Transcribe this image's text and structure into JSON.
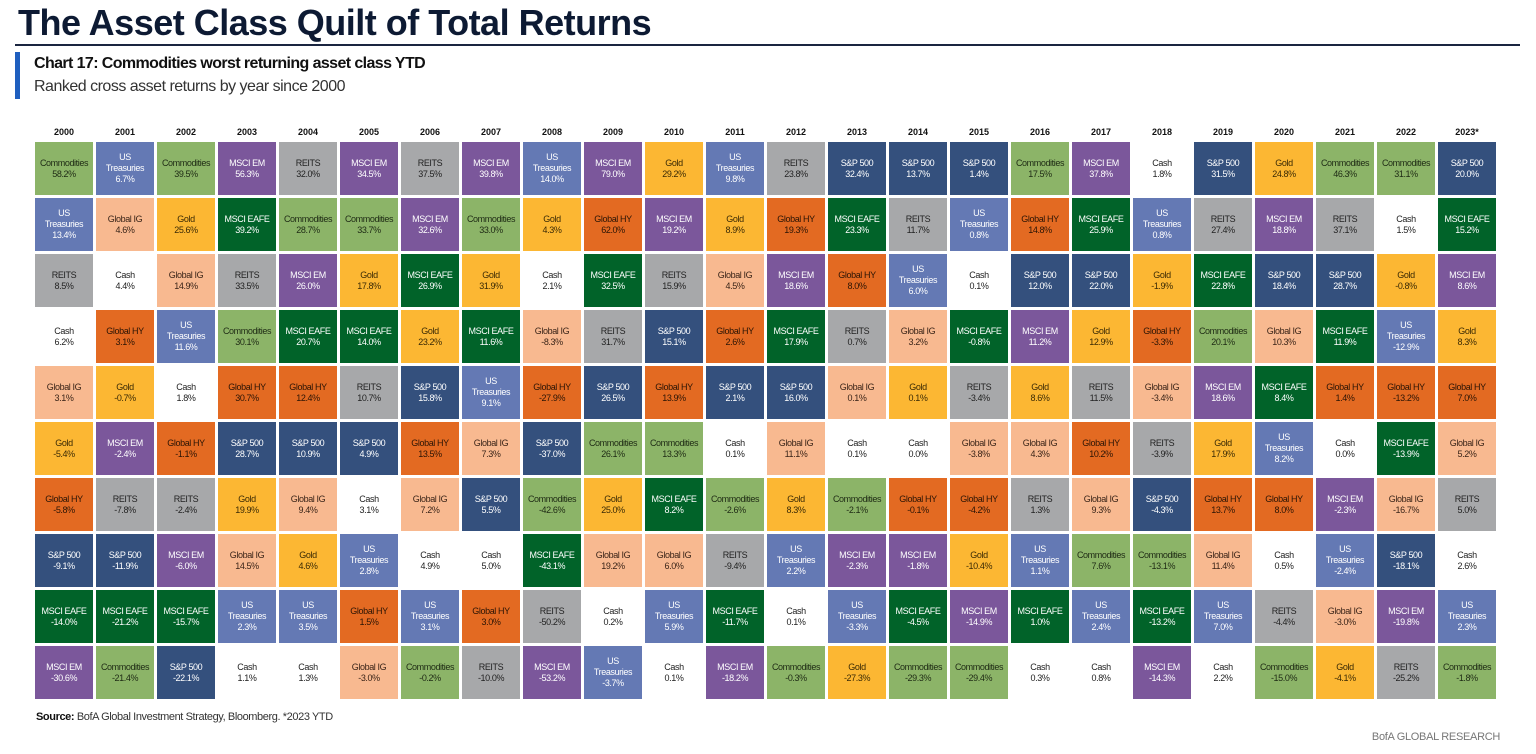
{
  "header": {
    "title": "The Asset Class Quilt of Total Returns",
    "chart_label": "Chart 17: Commodities worst returning asset class YTD",
    "chart_subtitle": "Ranked cross asset returns by year since 2000"
  },
  "footer": {
    "source_label": "Source:",
    "source_text": "BofA Global Investment Strategy, Bloomberg. *2023 YTD",
    "brand": "BofA GLOBAL RESEARCH"
  },
  "chart_data": {
    "type": "table",
    "value_unit": "%",
    "colors": {
      "Commodities": {
        "bg": "#8cb468",
        "fg": "#1e2a14"
      },
      "US Treasuries": {
        "bg": "#6479b4",
        "fg": "#ffffff"
      },
      "REITS": {
        "bg": "#a7a8aa",
        "fg": "#222222"
      },
      "Cash": {
        "bg": "#ffffff",
        "fg": "#222222"
      },
      "Global IG": {
        "bg": "#f8b990",
        "fg": "#3a2418"
      },
      "Gold": {
        "bg": "#fcb733",
        "fg": "#3a2a05"
      },
      "Global HY": {
        "bg": "#e36a22",
        "fg": "#2a1405"
      },
      "S&P 500": {
        "bg": "#34507d",
        "fg": "#ffffff"
      },
      "MSCI EAFE": {
        "bg": "#016329",
        "fg": "#ffffff"
      },
      "MSCI EM": {
        "bg": "#7b579b",
        "fg": "#ffffff"
      }
    },
    "years": [
      "2000",
      "2001",
      "2002",
      "2003",
      "2004",
      "2005",
      "2006",
      "2007",
      "2008",
      "2009",
      "2010",
      "2011",
      "2012",
      "2013",
      "2014",
      "2015",
      "2016",
      "2017",
      "2018",
      "2019",
      "2020",
      "2021",
      "2022",
      "2023*"
    ],
    "columns": [
      [
        [
          "Commodities",
          58.2
        ],
        [
          "US Treasuries",
          13.4
        ],
        [
          "REITS",
          8.5
        ],
        [
          "Cash",
          6.2
        ],
        [
          "Global IG",
          3.1
        ],
        [
          "Gold",
          -5.4
        ],
        [
          "Global HY",
          -5.8
        ],
        [
          "S&P 500",
          -9.1
        ],
        [
          "MSCI EAFE",
          -14.0
        ],
        [
          "MSCI EM",
          -30.6
        ]
      ],
      [
        [
          "US Treasuries",
          6.7
        ],
        [
          "Global IG",
          4.6
        ],
        [
          "Cash",
          4.4
        ],
        [
          "Global HY",
          3.1
        ],
        [
          "Gold",
          -0.7
        ],
        [
          "MSCI EM",
          -2.4
        ],
        [
          "REITS",
          -7.8
        ],
        [
          "S&P 500",
          -11.9
        ],
        [
          "MSCI EAFE",
          -21.2
        ],
        [
          "Commodities",
          -21.4
        ]
      ],
      [
        [
          "Commodities",
          39.5
        ],
        [
          "Gold",
          25.6
        ],
        [
          "Global IG",
          14.9
        ],
        [
          "US Treasuries",
          11.6
        ],
        [
          "Cash",
          1.8
        ],
        [
          "Global HY",
          -1.1
        ],
        [
          "REITS",
          -2.4
        ],
        [
          "MSCI EM",
          -6.0
        ],
        [
          "MSCI EAFE",
          -15.7
        ],
        [
          "S&P 500",
          -22.1
        ]
      ],
      [
        [
          "MSCI EM",
          56.3
        ],
        [
          "MSCI EAFE",
          39.2
        ],
        [
          "REITS",
          33.5
        ],
        [
          "Commodities",
          30.1
        ],
        [
          "Global HY",
          30.7
        ],
        [
          "S&P 500",
          28.7
        ],
        [
          "Gold",
          19.9
        ],
        [
          "Global IG",
          14.5
        ],
        [
          "US Treasuries",
          2.3
        ],
        [
          "Cash",
          1.1
        ]
      ],
      [
        [
          "REITS",
          32.0
        ],
        [
          "Commodities",
          28.7
        ],
        [
          "MSCI EM",
          26.0
        ],
        [
          "MSCI EAFE",
          20.7
        ],
        [
          "Global HY",
          12.4
        ],
        [
          "S&P 500",
          10.9
        ],
        [
          "Global IG",
          9.4
        ],
        [
          "Gold",
          4.6
        ],
        [
          "US Treasuries",
          3.5
        ],
        [
          "Cash",
          1.3
        ]
      ],
      [
        [
          "MSCI EM",
          34.5
        ],
        [
          "Commodities",
          33.7
        ],
        [
          "Gold",
          17.8
        ],
        [
          "MSCI EAFE",
          14.0
        ],
        [
          "REITS",
          10.7
        ],
        [
          "S&P 500",
          4.9
        ],
        [
          "Cash",
          3.1
        ],
        [
          "US Treasuries",
          2.8
        ],
        [
          "Global HY",
          1.5
        ],
        [
          "Global IG",
          -3.0
        ]
      ],
      [
        [
          "REITS",
          37.5
        ],
        [
          "MSCI EM",
          32.6
        ],
        [
          "MSCI EAFE",
          26.9
        ],
        [
          "Gold",
          23.2
        ],
        [
          "S&P 500",
          15.8
        ],
        [
          "Global HY",
          13.5
        ],
        [
          "Global IG",
          7.2
        ],
        [
          "Cash",
          4.9
        ],
        [
          "US Treasuries",
          3.1
        ],
        [
          "Commodities",
          -0.2
        ]
      ],
      [
        [
          "MSCI EM",
          39.8
        ],
        [
          "Commodities",
          33.0
        ],
        [
          "Gold",
          31.9
        ],
        [
          "MSCI EAFE",
          11.6
        ],
        [
          "US Treasuries",
          9.1
        ],
        [
          "Global IG",
          7.3
        ],
        [
          "S&P 500",
          5.5
        ],
        [
          "Cash",
          5.0
        ],
        [
          "Global HY",
          3.0
        ],
        [
          "REITS",
          -10.0
        ]
      ],
      [
        [
          "US Treasuries",
          14.0
        ],
        [
          "Gold",
          4.3
        ],
        [
          "Cash",
          2.1
        ],
        [
          "Global IG",
          -8.3
        ],
        [
          "Global HY",
          -27.9
        ],
        [
          "S&P 500",
          -37.0
        ],
        [
          "Commodities",
          -42.6
        ],
        [
          "MSCI EAFE",
          -43.1
        ],
        [
          "REITS",
          -50.2
        ],
        [
          "MSCI EM",
          -53.2
        ]
      ],
      [
        [
          "MSCI EM",
          79.0
        ],
        [
          "Global HY",
          62.0
        ],
        [
          "MSCI EAFE",
          32.5
        ],
        [
          "REITS",
          31.7
        ],
        [
          "S&P 500",
          26.5
        ],
        [
          "Commodities",
          26.1
        ],
        [
          "Gold",
          25.0
        ],
        [
          "Global IG",
          19.2
        ],
        [
          "Cash",
          0.2
        ],
        [
          "US Treasuries",
          -3.7
        ]
      ],
      [
        [
          "Gold",
          29.2
        ],
        [
          "MSCI EM",
          19.2
        ],
        [
          "REITS",
          15.9
        ],
        [
          "S&P 500",
          15.1
        ],
        [
          "Global HY",
          13.9
        ],
        [
          "Commodities",
          13.3
        ],
        [
          "MSCI EAFE",
          8.2
        ],
        [
          "Global IG",
          6.0
        ],
        [
          "US Treasuries",
          5.9
        ],
        [
          "Cash",
          0.1
        ]
      ],
      [
        [
          "US Treasuries",
          9.8
        ],
        [
          "Gold",
          8.9
        ],
        [
          "Global IG",
          4.5
        ],
        [
          "Global HY",
          2.6
        ],
        [
          "S&P 500",
          2.1
        ],
        [
          "Cash",
          0.1
        ],
        [
          "Commodities",
          -2.6
        ],
        [
          "REITS",
          -9.4
        ],
        [
          "MSCI EAFE",
          -11.7
        ],
        [
          "MSCI EM",
          -18.2
        ]
      ],
      [
        [
          "REITS",
          23.8
        ],
        [
          "Global HY",
          19.3
        ],
        [
          "MSCI EM",
          18.6
        ],
        [
          "MSCI EAFE",
          17.9
        ],
        [
          "S&P 500",
          16.0
        ],
        [
          "Global IG",
          11.1
        ],
        [
          "Gold",
          8.3
        ],
        [
          "US Treasuries",
          2.2
        ],
        [
          "Cash",
          0.1
        ],
        [
          "Commodities",
          -0.3
        ]
      ],
      [
        [
          "S&P 500",
          32.4
        ],
        [
          "MSCI EAFE",
          23.3
        ],
        [
          "Global HY",
          8.0
        ],
        [
          "REITS",
          0.7
        ],
        [
          "Global IG",
          0.1
        ],
        [
          "Cash",
          0.1
        ],
        [
          "Commodities",
          -2.1
        ],
        [
          "MSCI EM",
          -2.3
        ],
        [
          "US Treasuries",
          -3.3
        ],
        [
          "Gold",
          -27.3
        ]
      ],
      [
        [
          "S&P 500",
          13.7
        ],
        [
          "REITS",
          11.7
        ],
        [
          "US Treasuries",
          6.0
        ],
        [
          "Global IG",
          3.2
        ],
        [
          "Gold",
          0.1
        ],
        [
          "Cash",
          0.0
        ],
        [
          "Global HY",
          -0.1
        ],
        [
          "MSCI EM",
          -1.8
        ],
        [
          "MSCI EAFE",
          -4.5
        ],
        [
          "Commodities",
          -29.3
        ]
      ],
      [
        [
          "S&P 500",
          1.4
        ],
        [
          "US Treasuries",
          0.8
        ],
        [
          "Cash",
          0.1
        ],
        [
          "MSCI EAFE",
          -0.8
        ],
        [
          "REITS",
          -3.4
        ],
        [
          "Global IG",
          -3.8
        ],
        [
          "Global HY",
          -4.2
        ],
        [
          "Gold",
          -10.4
        ],
        [
          "MSCI EM",
          -14.9
        ],
        [
          "Commodities",
          -29.4
        ]
      ],
      [
        [
          "Commodities",
          17.5
        ],
        [
          "Global HY",
          14.8
        ],
        [
          "S&P 500",
          12.0
        ],
        [
          "MSCI EM",
          11.2
        ],
        [
          "Gold",
          8.6
        ],
        [
          "Global IG",
          4.3
        ],
        [
          "REITS",
          1.3
        ],
        [
          "US Treasuries",
          1.1
        ],
        [
          "MSCI EAFE",
          1.0
        ],
        [
          "Cash",
          0.3
        ]
      ],
      [
        [
          "MSCI EM",
          37.8
        ],
        [
          "MSCI EAFE",
          25.9
        ],
        [
          "S&P 500",
          22.0
        ],
        [
          "Gold",
          12.9
        ],
        [
          "REITS",
          11.5
        ],
        [
          "Global HY",
          10.2
        ],
        [
          "Global IG",
          9.3
        ],
        [
          "Commodities",
          7.6
        ],
        [
          "US Treasuries",
          2.4
        ],
        [
          "Cash",
          0.8
        ]
      ],
      [
        [
          "Cash",
          1.8
        ],
        [
          "US Treasuries",
          0.8
        ],
        [
          "Gold",
          -1.9
        ],
        [
          "Global HY",
          -3.3
        ],
        [
          "Global IG",
          -3.4
        ],
        [
          "REITS",
          -3.9
        ],
        [
          "S&P 500",
          -4.3
        ],
        [
          "Commodities",
          -13.1
        ],
        [
          "MSCI EAFE",
          -13.2
        ],
        [
          "MSCI EM",
          -14.3
        ]
      ],
      [
        [
          "S&P 500",
          31.5
        ],
        [
          "REITS",
          27.4
        ],
        [
          "MSCI EAFE",
          22.8
        ],
        [
          "Commodities",
          20.1
        ],
        [
          "MSCI EM",
          18.6
        ],
        [
          "Gold",
          17.9
        ],
        [
          "Global HY",
          13.7
        ],
        [
          "Global IG",
          11.4
        ],
        [
          "US Treasuries",
          7.0
        ],
        [
          "Cash",
          2.2
        ]
      ],
      [
        [
          "Gold",
          24.8
        ],
        [
          "MSCI EM",
          18.8
        ],
        [
          "S&P 500",
          18.4
        ],
        [
          "Global IG",
          10.3
        ],
        [
          "MSCI EAFE",
          8.4
        ],
        [
          "US Treasuries",
          8.2
        ],
        [
          "Global HY",
          8.0
        ],
        [
          "Cash",
          0.5
        ],
        [
          "REITS",
          -4.4
        ],
        [
          "Commodities",
          -15.0
        ]
      ],
      [
        [
          "Commodities",
          46.3
        ],
        [
          "REITS",
          37.1
        ],
        [
          "S&P 500",
          28.7
        ],
        [
          "MSCI EAFE",
          11.9
        ],
        [
          "Global HY",
          1.4
        ],
        [
          "Cash",
          0.0
        ],
        [
          "MSCI EM",
          -2.3
        ],
        [
          "US Treasuries",
          -2.4
        ],
        [
          "Global IG",
          -3.0
        ],
        [
          "Gold",
          -4.1
        ]
      ],
      [
        [
          "Commodities",
          31.1
        ],
        [
          "Cash",
          1.5
        ],
        [
          "Gold",
          -0.8
        ],
        [
          "US Treasuries",
          -12.9
        ],
        [
          "Global HY",
          -13.2
        ],
        [
          "MSCI EAFE",
          -13.9
        ],
        [
          "Global IG",
          -16.7
        ],
        [
          "S&P 500",
          -18.1
        ],
        [
          "MSCI EM",
          -19.8
        ],
        [
          "REITS",
          -25.2
        ]
      ],
      [
        [
          "S&P 500",
          20.0
        ],
        [
          "MSCI EAFE",
          15.2
        ],
        [
          "MSCI EM",
          8.6
        ],
        [
          "Gold",
          8.3
        ],
        [
          "Global HY",
          7.0
        ],
        [
          "Global IG",
          5.2
        ],
        [
          "REITS",
          5.0
        ],
        [
          "Cash",
          2.6
        ],
        [
          "US Treasuries",
          2.3
        ],
        [
          "Commodities",
          -1.8
        ]
      ]
    ]
  }
}
